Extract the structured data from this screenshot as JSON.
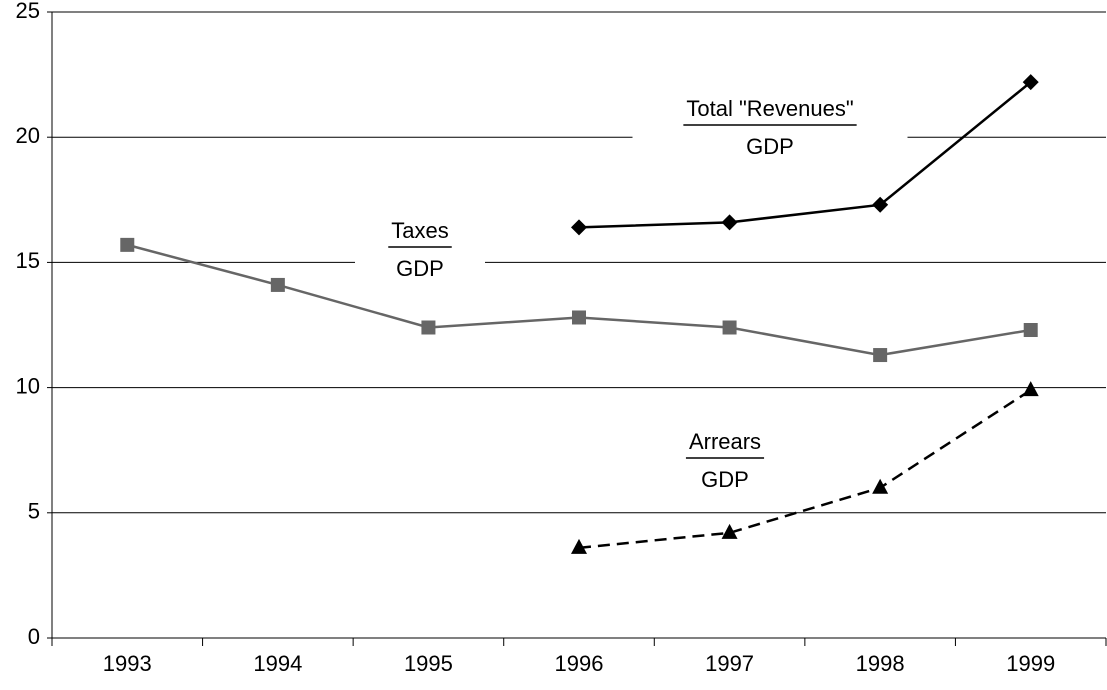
{
  "chart_data": {
    "type": "line",
    "categories": [
      "1993",
      "1994",
      "1995",
      "1996",
      "1997",
      "1998",
      "1999"
    ],
    "series": [
      {
        "name": "Total \"Revenues\"",
        "denominator": "GDP",
        "color": "#000000",
        "marker": "diamond",
        "dash": false,
        "values": [
          null,
          null,
          null,
          16.4,
          16.6,
          17.3,
          22.2
        ]
      },
      {
        "name": "Taxes",
        "denominator": "GDP",
        "color": "#666666",
        "marker": "square",
        "dash": false,
        "values": [
          15.7,
          14.1,
          12.4,
          12.8,
          12.4,
          11.3,
          12.3
        ]
      },
      {
        "name": "Arrears",
        "denominator": "GDP",
        "color": "#000000",
        "marker": "triangle",
        "dash": true,
        "values": [
          null,
          null,
          null,
          3.6,
          4.2,
          6.0,
          9.9
        ]
      }
    ],
    "ylim": [
      0,
      25
    ],
    "yticks": [
      0,
      5,
      10,
      15,
      20,
      25
    ],
    "grid": true
  }
}
